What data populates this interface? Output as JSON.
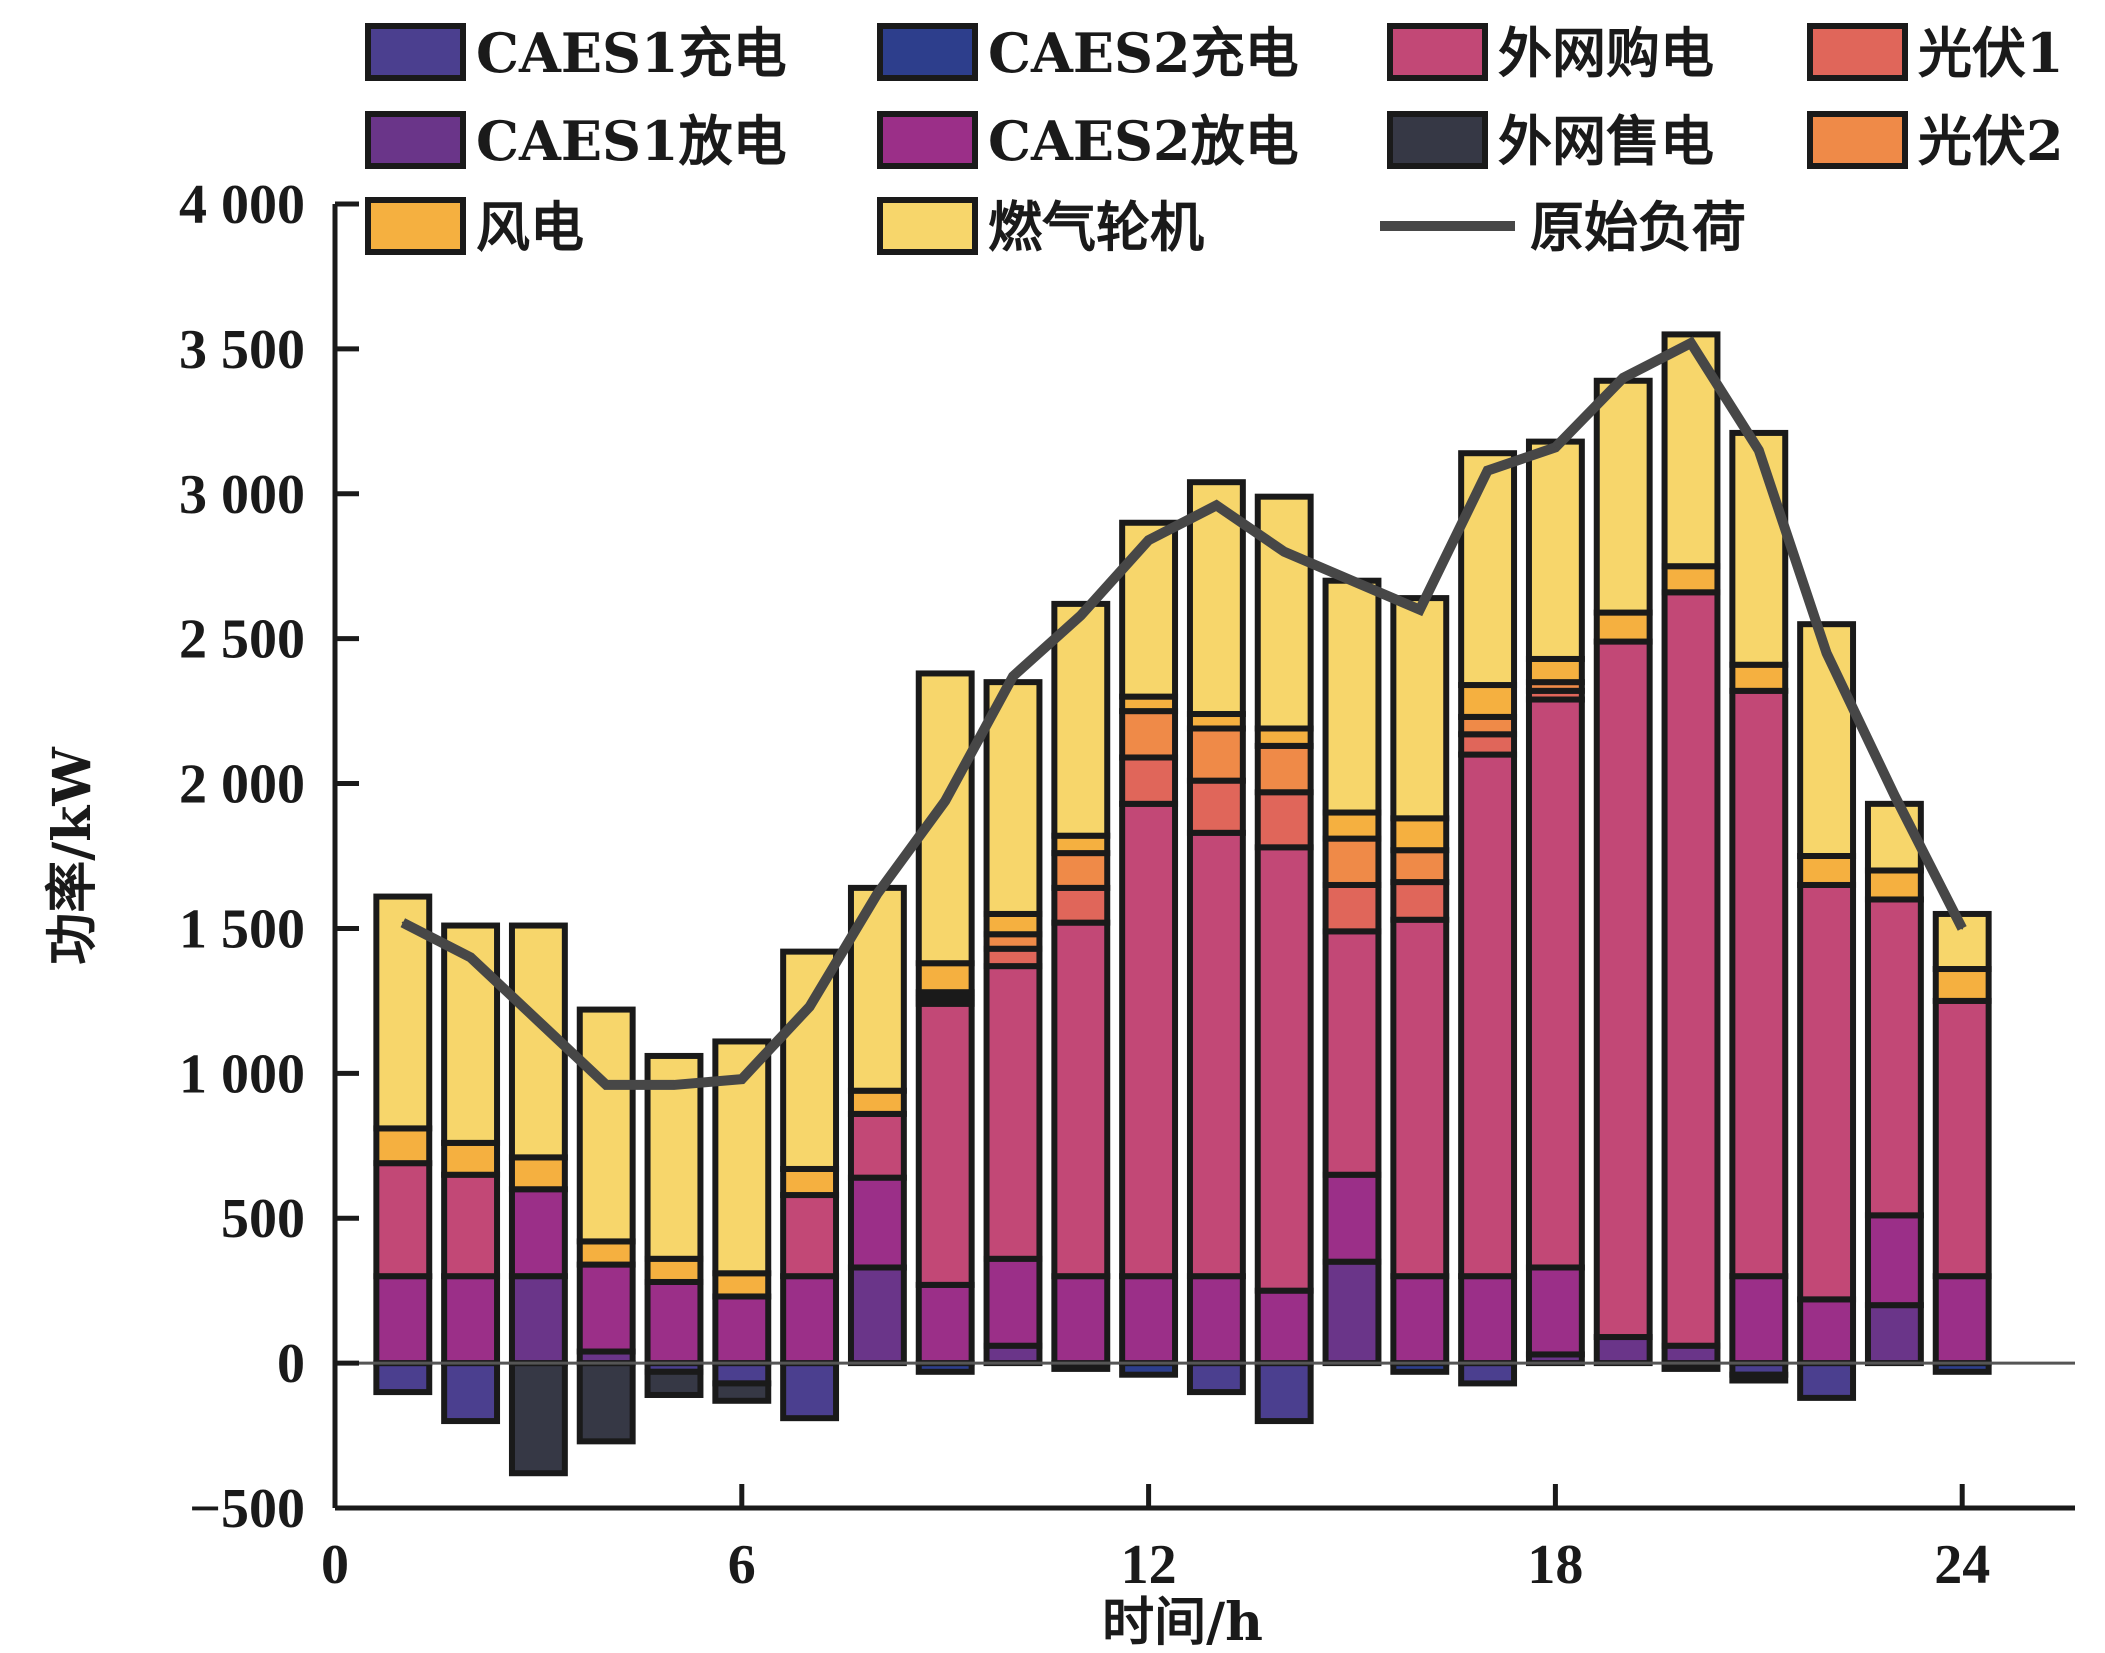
{
  "chart_data": {
    "type": "bar",
    "stacked": true,
    "title": "",
    "xlabel": "时间/h",
    "ylabel": "功率/kW",
    "xlim": [
      0,
      25
    ],
    "ylim": [
      -500,
      4000
    ],
    "x_ticks": [
      0,
      6,
      12,
      18,
      24
    ],
    "x_tick_labels": [
      "0",
      "6",
      "12",
      "18",
      "24"
    ],
    "y_ticks": [
      -500,
      0,
      500,
      1000,
      1500,
      2000,
      2500,
      3000,
      3500,
      4000
    ],
    "y_tick_labels": [
      "−500",
      "0",
      "500",
      "1 000",
      "1 500",
      "2 000",
      "2 500",
      "3 000",
      "3 500",
      "4 000"
    ],
    "grid": false,
    "legend_position": "top",
    "categories": [
      1,
      2,
      3,
      4,
      5,
      6,
      7,
      8,
      9,
      10,
      11,
      12,
      13,
      14,
      15,
      16,
      17,
      18,
      19,
      20,
      21,
      22,
      23,
      24
    ],
    "series": [
      {
        "name": "CAES1充电",
        "color": "#4b3f8f",
        "values": [
          -100,
          -200,
          0,
          0,
          -30,
          -70,
          -190,
          0,
          0,
          0,
          0,
          0,
          -100,
          -200,
          0,
          0,
          -70,
          0,
          0,
          0,
          -40,
          -120,
          0,
          0
        ]
      },
      {
        "name": "CAES2充电",
        "color": "#2d3e8c",
        "values": [
          0,
          0,
          0,
          0,
          0,
          0,
          0,
          0,
          -30,
          0,
          -20,
          -40,
          0,
          0,
          0,
          -30,
          0,
          0,
          0,
          -20,
          -20,
          0,
          0,
          -30
        ]
      },
      {
        "name": "外网售电",
        "color": "#363845",
        "values": [
          0,
          0,
          -380,
          -270,
          -80,
          -60,
          0,
          0,
          0,
          0,
          0,
          0,
          0,
          0,
          0,
          0,
          0,
          0,
          0,
          0,
          0,
          0,
          0,
          0
        ]
      },
      {
        "name": "CAES1放电",
        "color": "#6a3589",
        "values": [
          0,
          0,
          300,
          40,
          0,
          0,
          0,
          330,
          0,
          60,
          0,
          0,
          0,
          0,
          350,
          0,
          0,
          30,
          90,
          60,
          0,
          0,
          200,
          0
        ]
      },
      {
        "name": "CAES2放电",
        "color": "#9b2f88",
        "values": [
          300,
          300,
          300,
          300,
          280,
          230,
          300,
          310,
          270,
          300,
          300,
          300,
          300,
          250,
          300,
          300,
          300,
          300,
          0,
          0,
          300,
          220,
          310,
          300
        ]
      },
      {
        "name": "外网购电",
        "color": "#c24876",
        "values": [
          390,
          350,
          0,
          0,
          0,
          0,
          280,
          220,
          970,
          1010,
          1220,
          1630,
          1530,
          1530,
          840,
          1230,
          1800,
          1960,
          2400,
          2600,
          2020,
          1430,
          1090,
          950
        ]
      },
      {
        "name": "光伏1",
        "color": "#e0665a",
        "values": [
          0,
          0,
          0,
          0,
          0,
          0,
          0,
          0,
          20,
          60,
          120,
          160,
          180,
          190,
          160,
          130,
          70,
          30,
          0,
          0,
          0,
          0,
          0,
          0
        ]
      },
      {
        "name": "光伏2",
        "color": "#ef8a48",
        "values": [
          0,
          0,
          0,
          0,
          0,
          0,
          0,
          0,
          20,
          50,
          120,
          160,
          180,
          160,
          160,
          110,
          60,
          30,
          0,
          0,
          0,
          0,
          0,
          0
        ]
      },
      {
        "name": "风电",
        "color": "#f5b040",
        "values": [
          120,
          110,
          110,
          80,
          80,
          80,
          90,
          80,
          100,
          70,
          60,
          50,
          50,
          60,
          90,
          110,
          110,
          80,
          100,
          90,
          90,
          100,
          100,
          110
        ]
      },
      {
        "name": "燃气轮机",
        "color": "#f7d66b",
        "values": [
          800,
          750,
          800,
          800,
          700,
          800,
          750,
          700,
          1000,
          800,
          800,
          600,
          800,
          800,
          800,
          760,
          800,
          750,
          800,
          800,
          800,
          800,
          230,
          190
        ]
      }
    ],
    "line_series": {
      "name": "原始负荷",
      "color": "#474747",
      "x": [
        1,
        2,
        3,
        4,
        5,
        6,
        7,
        8,
        9,
        10,
        11,
        12,
        13,
        14,
        15,
        16,
        17,
        18,
        19,
        20,
        21,
        22,
        23,
        24
      ],
      "values": [
        1520,
        1400,
        1180,
        960,
        960,
        980,
        1230,
        1620,
        1940,
        2370,
        2580,
        2840,
        2960,
        2800,
        2700,
        2600,
        3080,
        3160,
        3400,
        3520,
        3150,
        2450,
        1960,
        1500
      ]
    },
    "legend_rows": [
      [
        "CAES1充电",
        "CAES2充电",
        "外网购电",
        "光伏1"
      ],
      [
        "CAES1放电",
        "CAES2放电",
        "外网售电",
        "光伏2"
      ],
      [
        "风电",
        "燃气轮机",
        "原始负荷"
      ]
    ]
  }
}
